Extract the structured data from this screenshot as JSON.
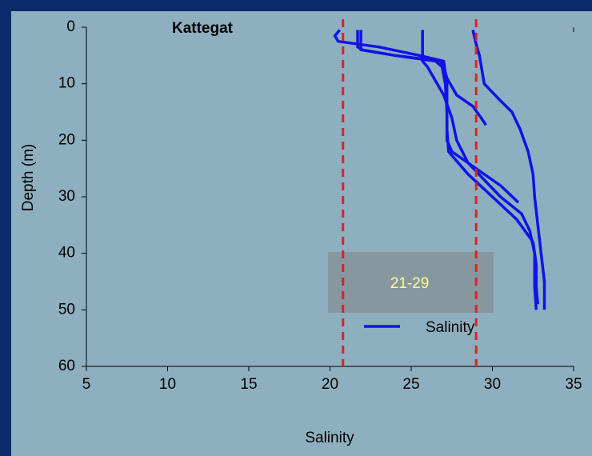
{
  "chart_data": {
    "type": "line",
    "title": "Kattegat",
    "xlabel": "Salinity",
    "ylabel": "Depth (m)",
    "xlim": [
      5,
      35
    ],
    "xticks": [
      5,
      10,
      15,
      20,
      25,
      30,
      35
    ],
    "ylim": [
      0,
      60
    ],
    "yticks": [
      0,
      10,
      20,
      30,
      40,
      50,
      60
    ],
    "y_inverted": true,
    "legend": "lower-right",
    "series": [
      {
        "name": "Salinity",
        "color": "#1212e6",
        "x": [
          20.6,
          20.3,
          20.5,
          23,
          25.5,
          27,
          27.1,
          27.2,
          27.2,
          27.2,
          27.3,
          28.5,
          30,
          31.5,
          32.5,
          32.7,
          32.7,
          32.8
        ],
        "y": [
          0.5,
          1.5,
          2.5,
          3.5,
          5,
          6,
          8,
          10,
          14,
          18,
          22,
          26,
          30,
          34,
          38,
          42,
          46,
          49
        ]
      },
      {
        "color": "#1212e6",
        "x": [
          21.7,
          21.7,
          22,
          24,
          26.5,
          26.9,
          27.1,
          27.2,
          27.2,
          27.5,
          29,
          30.5,
          31.6
        ],
        "y": [
          0.5,
          3.5,
          4,
          5,
          6,
          7,
          10,
          15,
          20,
          22,
          25,
          28,
          31
        ]
      },
      {
        "color": "#1212e6",
        "x": [
          25.7,
          25.7,
          26,
          26.4,
          27,
          27.5,
          27.8,
          28.5,
          29.5,
          30.5,
          31.8,
          32.3,
          32.6,
          32.6,
          32.7
        ],
        "y": [
          0.5,
          6,
          7,
          9,
          12,
          16,
          20,
          24,
          27,
          30,
          33,
          36,
          40,
          46,
          50
        ]
      },
      {
        "color": "#1212e6",
        "x": [
          28.8,
          29,
          29.2,
          29.5,
          30.5,
          31.2,
          31.7,
          32.2,
          32.5,
          32.6,
          32.8,
          33,
          33.2,
          33.2
        ],
        "y": [
          0.5,
          3,
          5,
          10,
          13,
          15,
          18,
          22,
          26,
          30,
          35,
          40,
          45,
          50
        ]
      },
      {
        "color": "#1212e6",
        "x": [
          21.9,
          21.9,
          24,
          26.8,
          27,
          27.2,
          27.8,
          28.8,
          29.3,
          29.6
        ],
        "y": [
          0.5,
          4,
          5,
          6,
          7,
          9,
          12,
          14,
          16,
          17.3
        ]
      }
    ],
    "reference_lines": [
      {
        "x": 20.8,
        "color": "#e02020"
      },
      {
        "x": 29,
        "color": "#e02020"
      }
    ],
    "annotation": "21-29"
  }
}
